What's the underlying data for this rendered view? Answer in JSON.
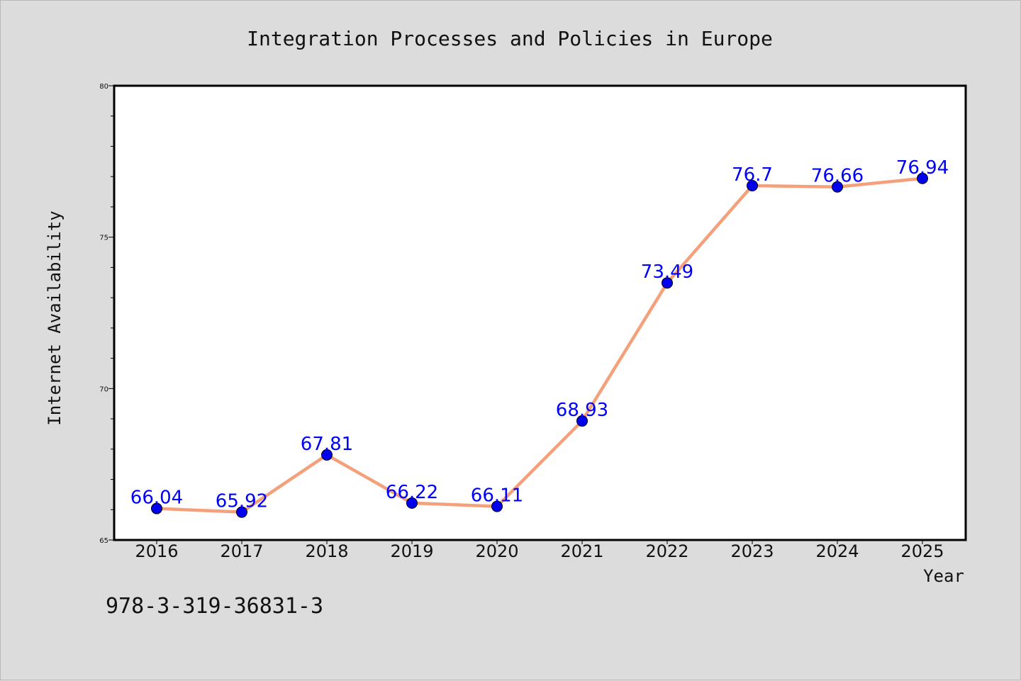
{
  "chart_data": {
    "type": "line",
    "title": "Integration Processes and Policies in Europe",
    "xlabel": "Year",
    "ylabel": "Internet Availability",
    "categories": [
      "2016",
      "2017",
      "2018",
      "2019",
      "2020",
      "2021",
      "2022",
      "2023",
      "2024",
      "2025"
    ],
    "series": [
      {
        "values": [
          66.04,
          65.92,
          67.81,
          66.22,
          66.11,
          68.93,
          73.49,
          76.7,
          76.66,
          76.94
        ],
        "value_labels": [
          "66.04",
          "65.92",
          "67.81",
          "66.22",
          "66.11",
          "68.93",
          "73.49",
          "76.7",
          "76.66",
          "76.94"
        ],
        "line_color": "#f4a07a",
        "marker_color": "#0000ee"
      }
    ],
    "ylim": [
      65,
      80
    ],
    "yticks": [
      "65",
      "70",
      "75",
      "80"
    ],
    "grid": false,
    "legend": "none"
  },
  "footer_text": "978-3-319-36831-3",
  "colors": {
    "background": "#dcdcdc",
    "plot_background": "#ffffff",
    "label_color": "#0000ff"
  }
}
